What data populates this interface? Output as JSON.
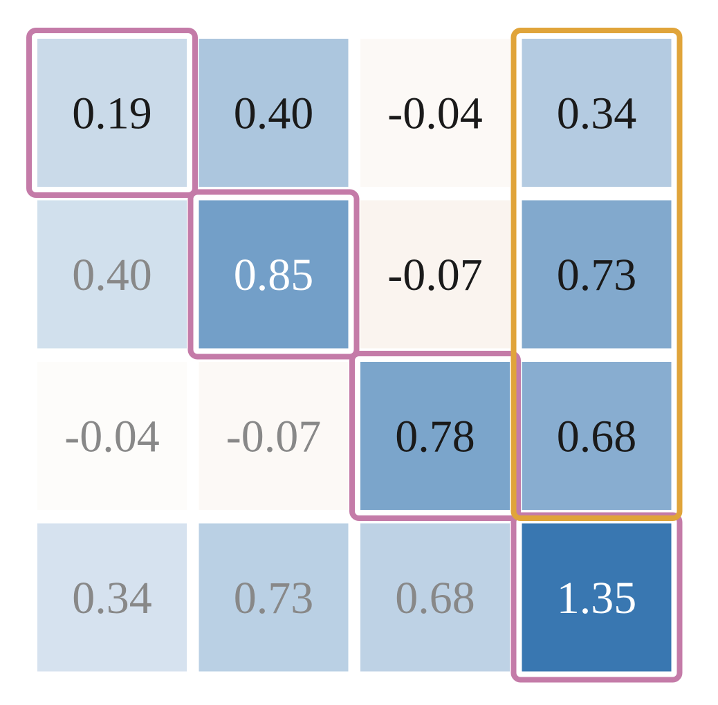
{
  "chart_data": {
    "type": "heatmap",
    "title": "",
    "xlabel": "",
    "ylabel": "",
    "rows": 4,
    "cols": 4,
    "values": [
      [
        0.19,
        0.4,
        -0.04,
        0.34
      ],
      [
        0.4,
        0.85,
        -0.07,
        0.73
      ],
      [
        -0.04,
        -0.07,
        0.78,
        0.68
      ],
      [
        0.34,
        0.73,
        0.68,
        1.35
      ]
    ],
    "labels": [
      [
        "0.19",
        "0.40",
        "-0.04",
        "0.34"
      ],
      [
        "0.40",
        "0.85",
        "-0.07",
        "0.73"
      ],
      [
        "-0.04",
        "-0.07",
        "0.78",
        "0.68"
      ],
      [
        "0.34",
        "0.73",
        "0.68",
        "1.35"
      ]
    ],
    "faded_region": "lower-triangle",
    "colormap": "red-white-blue (diverging)",
    "colors": {
      "positive_max": "#3575b0",
      "negative": "#f6ebe3",
      "zero": "#ffffff",
      "text_dark": "#1a1a1a",
      "text_light": "#ffffff",
      "text_faded": "#888888"
    },
    "highlights": [
      {
        "kind": "diagonal",
        "cells": [
          [
            0,
            0
          ],
          [
            1,
            1
          ],
          [
            2,
            2
          ],
          [
            3,
            3
          ]
        ],
        "color": "#c47ba8"
      },
      {
        "kind": "column-block",
        "col": 3,
        "rows": [
          0,
          2
        ],
        "color": "#e0a43a"
      }
    ],
    "grid": false,
    "legend": "none"
  }
}
